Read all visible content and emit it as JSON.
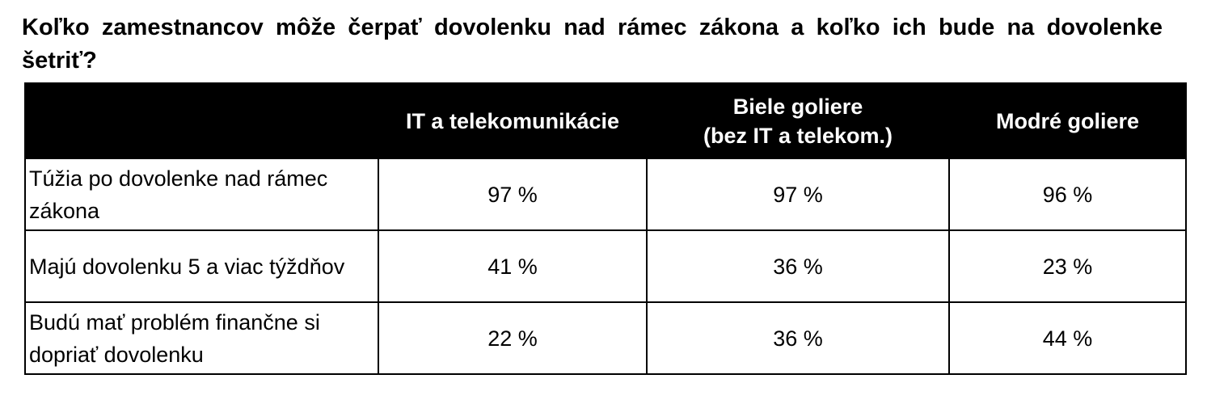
{
  "title": "Koľko zamestnancov môže čerpať dovolenku nad rámec zákona a koľko ich bude na dovolenke šetriť?",
  "table": {
    "columns": [
      [
        "IT a telekomunikácie"
      ],
      [
        "Biele goliere",
        "(bez IT a telekom.)"
      ],
      [
        "Modré goliere"
      ]
    ],
    "rows": [
      {
        "label": "Túžia po dovolenke nad rámec zákona",
        "values": [
          "97 %",
          "97 %",
          "96 %"
        ]
      },
      {
        "label": "Majú dovolenku 5 a viac týždňov",
        "values": [
          "41 %",
          "36 %",
          "23 %"
        ]
      },
      {
        "label": "Budú mať problém finančne si dopriať dovolenku",
        "values": [
          "22 %",
          "36 %",
          "44 %"
        ]
      }
    ]
  }
}
